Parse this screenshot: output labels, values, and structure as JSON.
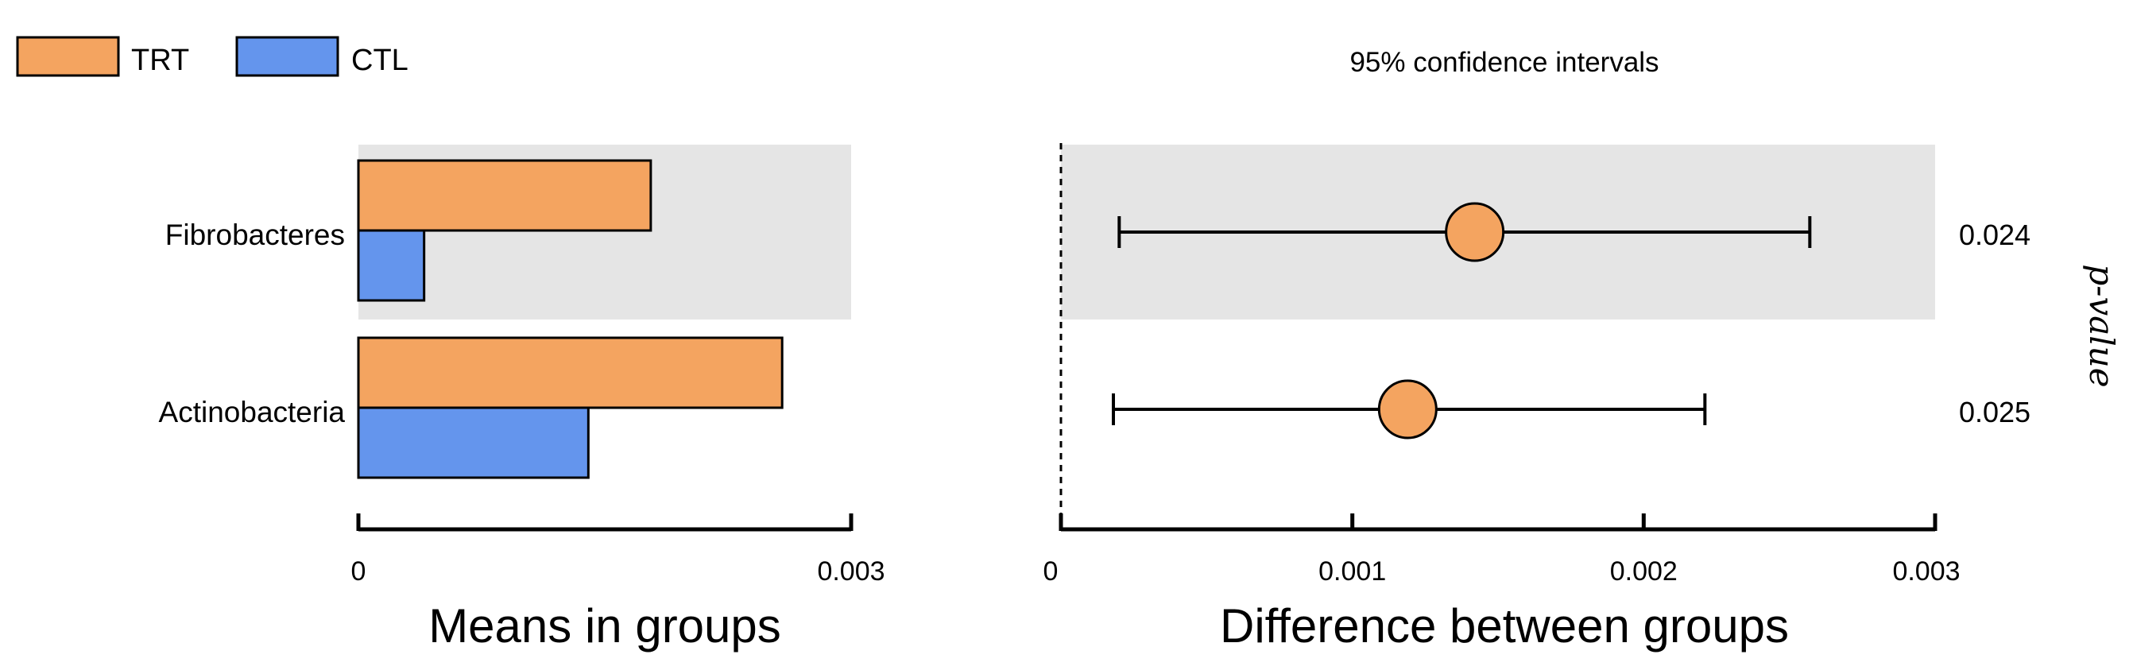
{
  "chart_data": {
    "type": "bar",
    "legend": [
      {
        "name": "TRT",
        "color": "#F4A460"
      },
      {
        "name": "CTL",
        "color": "#6495ED"
      }
    ],
    "categories": [
      "Fibrobacteres",
      "Actinobacteria"
    ],
    "means": {
      "title": "Means in groups",
      "xlim": [
        0,
        0.003
      ],
      "ticks": [
        0,
        0.003
      ],
      "tick_labels": [
        "0",
        "0.003"
      ],
      "series": [
        {
          "name": "TRT",
          "color": "#F4A460",
          "values": [
            0.00178,
            0.00258
          ]
        },
        {
          "name": "CTL",
          "color": "#6495ED",
          "values": [
            0.0004,
            0.0014
          ]
        }
      ]
    },
    "difference": {
      "subtitle": "95% confidence intervals",
      "title": "Difference between groups",
      "xlim": [
        0,
        0.003
      ],
      "ticks": [
        0,
        0.001,
        0.002,
        0.003
      ],
      "tick_labels": [
        "0",
        "0.001",
        "0.002",
        "0.003"
      ],
      "estimates": [
        0.00142,
        0.00119
      ],
      "ci_low": [
        0.0002,
        0.00018
      ],
      "ci_high": [
        0.00257,
        0.00221
      ],
      "marker_color": "#F4A460"
    },
    "p_values": [
      "0.024",
      "0.025"
    ],
    "p_label": "p-value",
    "highlight_rows": [
      0
    ]
  }
}
